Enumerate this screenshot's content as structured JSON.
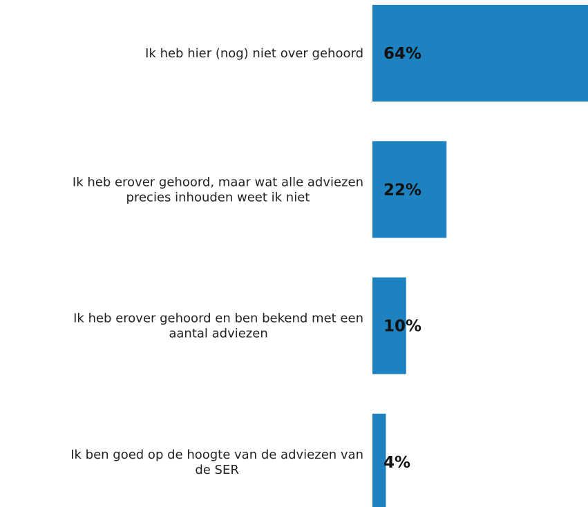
{
  "chart_data": {
    "type": "bar",
    "orientation": "horizontal",
    "categories": [
      [
        "Ik heb hier (nog) niet over gehoord"
      ],
      [
        "Ik heb erover gehoord, maar wat alle adviezen",
        "precies inhouden weet ik niet"
      ],
      [
        "Ik heb erover gehoord en ben bekend met een",
        "aantal adviezen"
      ],
      [
        "Ik ben goed op de hoogte van de adviezen van",
        "de SER"
      ]
    ],
    "values": [
      64,
      22,
      10,
      4
    ],
    "value_labels": [
      "64%",
      "22%",
      "10%",
      "4%"
    ],
    "xlim": [
      0,
      64
    ],
    "bar_color": "#1f82c0",
    "grid": false,
    "legend": "none",
    "title": "",
    "xlabel": "",
    "ylabel": ""
  }
}
